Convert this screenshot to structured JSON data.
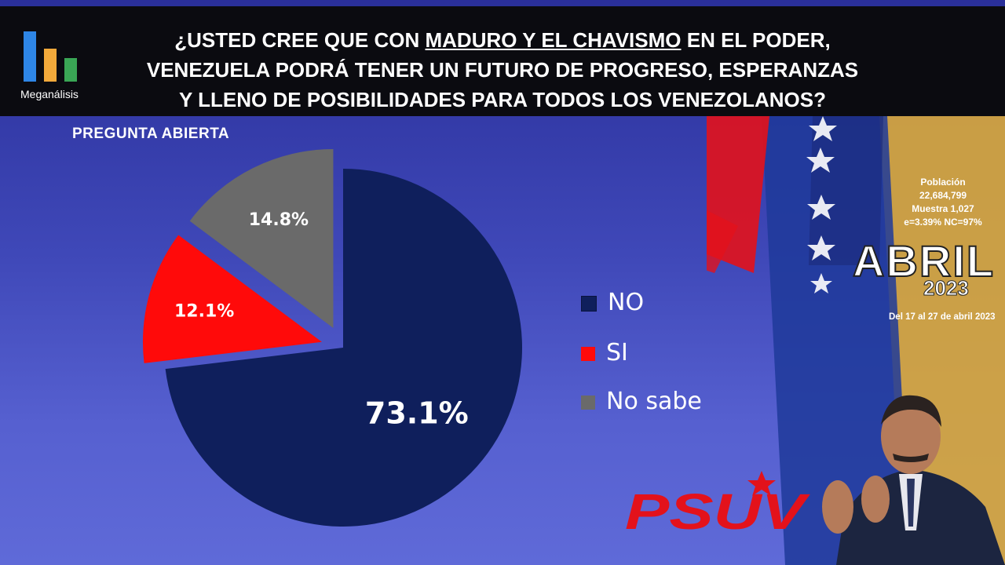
{
  "header": {
    "logo_label": "Meganálisis",
    "question_line1_pre": "¿USTED CREE QUE CON ",
    "question_line1_underlined": "MADURO Y EL CHAVISMO",
    "question_line1_post": " EN EL PODER,",
    "question_line2": "VENEZUELA PODRÁ TENER UN FUTURO DE PROGRESO, ESPERANZAS",
    "question_line3": "Y LLENO DE POSIBILIDADES PARA TODOS LOS VENEZOLANOS?"
  },
  "subtitle": "PREGUNTA  ABIERTA",
  "info_box": {
    "label_population": "Población",
    "population": "22,684,799",
    "sample": "Muestra 1,027",
    "error": "e=3.39%  NC=97%",
    "month": "ABRIL",
    "year": "2023",
    "dates": "Del 17 al 27 de abril 2023"
  },
  "party_logo_text": "PSUV",
  "colors": {
    "no": "#0f1f5c",
    "si": "#ff0a0a",
    "no_sabe": "#6a6a6a"
  },
  "chart_data": {
    "type": "pie",
    "title": "",
    "labels": [
      "NO",
      "SI",
      "No sabe"
    ],
    "values": [
      73.1,
      12.1,
      14.8
    ],
    "data_labels": [
      "73.1%",
      "12.1%",
      "14.8%"
    ],
    "exploded": [
      "SI",
      "No sabe"
    ],
    "legend": "right"
  }
}
